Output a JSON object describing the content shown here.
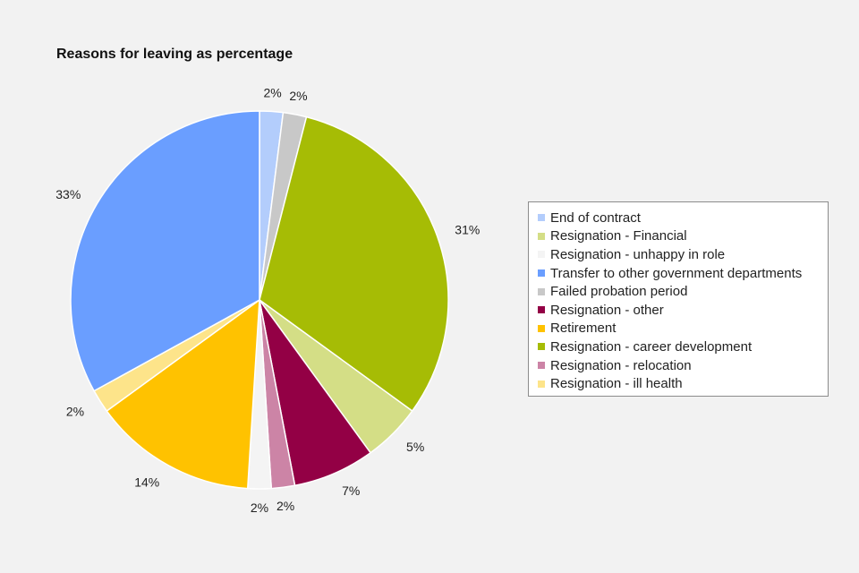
{
  "chart_data": {
    "type": "pie",
    "title": "Reasons for leaving as percentage",
    "slices": [
      {
        "name": "End of contract",
        "value": 2,
        "label": "2%",
        "color": "#b3cdfc"
      },
      {
        "name": "Failed probation period",
        "value": 2,
        "label": "2%",
        "color": "#c8c8c8"
      },
      {
        "name": "Resignation - career development",
        "value": 31,
        "label": "31%",
        "color": "#a6bc05"
      },
      {
        "name": "Resignation - Financial",
        "value": 5,
        "label": "5%",
        "color": "#d4de86"
      },
      {
        "name": "Resignation - other",
        "value": 7,
        "label": "7%",
        "color": "#930045"
      },
      {
        "name": "Resignation - relocation",
        "value": 2,
        "label": "2%",
        "color": "#cc84a6"
      },
      {
        "name": "Resignation - unhappy in role",
        "value": 2,
        "label": "2%",
        "color": "#f4f4f4"
      },
      {
        "name": "Retirement",
        "value": 14,
        "label": "14%",
        "color": "#ffc200"
      },
      {
        "name": "Resignation - ill health",
        "value": 2,
        "label": "2%",
        "color": "#fde48a"
      },
      {
        "name": "Transfer to other government departments",
        "value": 33,
        "label": "33%",
        "color": "#6a9eff"
      }
    ],
    "legend": {
      "placement": "right",
      "entries": [
        {
          "name": "End of contract",
          "color": "#b3cdfc"
        },
        {
          "name": "Resignation - Financial",
          "color": "#d4de86"
        },
        {
          "name": "Resignation - unhappy in role",
          "color": "#f4f4f4"
        },
        {
          "name": "Transfer to other government departments",
          "color": "#6a9eff"
        },
        {
          "name": "Failed probation period",
          "color": "#c8c8c8"
        },
        {
          "name": "Resignation - other",
          "color": "#930045"
        },
        {
          "name": "Retirement",
          "color": "#ffc200"
        },
        {
          "name": "Resignation - career development",
          "color": "#a6bc05"
        },
        {
          "name": "Resignation - relocation",
          "color": "#cc84a6"
        },
        {
          "name": "Resignation - ill health",
          "color": "#fde48a"
        }
      ]
    }
  }
}
